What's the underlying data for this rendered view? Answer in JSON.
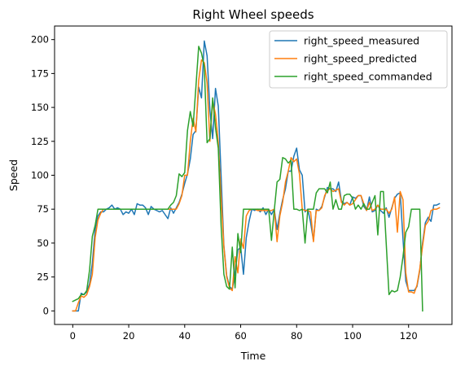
{
  "chart_data": {
    "type": "line",
    "title": "Right Wheel speeds",
    "xlabel": "Time",
    "ylabel": "Speed",
    "xlim": [
      -6.5,
      135.5
    ],
    "ylim": [
      -10,
      210
    ],
    "xticks": [
      0,
      20,
      40,
      60,
      80,
      100,
      120
    ],
    "yticks": [
      0,
      25,
      50,
      75,
      100,
      125,
      150,
      175,
      200
    ],
    "grid": false,
    "legend_position": "top-right",
    "colors": {
      "right_speed_measured": "#1f77b4",
      "right_speed_predicted": "#ff7f0e",
      "right_speed_commanded": "#2ca02c"
    },
    "series": [
      {
        "name": "right_speed_measured",
        "color": "#1f77b4",
        "values": [
          0,
          0,
          0,
          13,
          12,
          14,
          20,
          35,
          60,
          70,
          73,
          73,
          75,
          76,
          78,
          75,
          76,
          75,
          71,
          73,
          72,
          75,
          71,
          79,
          78,
          78,
          76,
          71,
          77,
          75,
          74,
          73,
          74,
          71,
          68,
          76,
          72,
          76,
          80,
          86,
          94,
          101,
          112,
          130,
          133,
          165,
          157,
          199,
          188,
          148,
          127,
          164,
          151,
          100,
          48,
          26,
          18,
          16,
          28,
          45,
          47,
          27,
          54,
          66,
          75,
          74,
          75,
          73,
          76,
          71,
          75,
          71,
          75,
          60,
          72,
          82,
          90,
          103,
          103,
          114,
          120,
          104,
          100,
          73,
          75,
          65,
          52,
          75,
          74,
          77,
          84,
          91,
          90,
          90,
          88,
          95,
          81,
          79,
          80,
          78,
          84,
          83,
          85,
          85,
          77,
          74,
          84,
          73,
          74,
          78,
          74,
          72,
          76,
          69,
          76,
          83,
          86,
          87,
          53,
          22,
          15,
          15,
          15,
          18,
          30,
          50,
          65,
          69,
          66,
          78,
          78,
          79
        ]
      },
      {
        "name": "right_speed_predicted",
        "color": "#ff7f0e",
        "values": [
          0,
          0,
          6,
          11,
          10,
          12,
          18,
          27,
          54,
          67,
          72,
          75,
          75,
          75,
          75,
          75,
          75,
          75,
          75,
          75,
          75,
          75,
          75,
          75,
          75,
          75,
          75,
          75,
          75,
          75,
          75,
          75,
          75,
          75,
          75,
          75,
          75,
          75,
          79,
          85,
          100,
          100,
          125,
          142,
          132,
          170,
          185,
          183,
          168,
          125,
          155,
          145,
          124,
          84,
          47,
          25,
          17,
          15,
          40,
          28,
          53,
          46,
          70,
          74,
          75,
          75,
          74,
          74,
          74,
          74,
          74,
          74,
          75,
          51,
          70,
          80,
          95,
          103,
          113,
          110,
          112,
          101,
          75,
          74,
          74,
          73,
          51,
          74,
          74,
          76,
          85,
          89,
          90,
          88,
          89,
          90,
          80,
          78,
          80,
          78,
          79,
          82,
          85,
          85,
          79,
          74,
          80,
          74,
          75,
          78,
          75,
          75,
          75,
          72,
          75,
          84,
          58,
          88,
          82,
          28,
          14,
          14,
          13,
          19,
          31,
          48,
          63,
          66,
          74,
          75,
          75,
          76
        ]
      },
      {
        "name": "right_speed_commanded",
        "color": "#2ca02c",
        "values": [
          7,
          8,
          9,
          12,
          12,
          15,
          30,
          55,
          63,
          75,
          75,
          75,
          75,
          75,
          75,
          75,
          75,
          75,
          75,
          75,
          75,
          75,
          75,
          75,
          75,
          75,
          75,
          75,
          75,
          75,
          75,
          75,
          75,
          75,
          75,
          78,
          80,
          85,
          101,
          99,
          102,
          133,
          147,
          136,
          165,
          195,
          190,
          180,
          124,
          127,
          157,
          135,
          120,
          63,
          27,
          18,
          16,
          47,
          17,
          57,
          43,
          75,
          75,
          75,
          75,
          75,
          75,
          75,
          75,
          75,
          75,
          52,
          74,
          95,
          97,
          113,
          112,
          109,
          111,
          75,
          75,
          74,
          75,
          50,
          75,
          75,
          75,
          87,
          90,
          90,
          90,
          87,
          95,
          75,
          82,
          75,
          75,
          85,
          86,
          86,
          83,
          75,
          78,
          75,
          79,
          75,
          75,
          80,
          85,
          56,
          88,
          88,
          50,
          12,
          15,
          14,
          15,
          25,
          40,
          58,
          62,
          75,
          75,
          75,
          75,
          0
        ]
      }
    ]
  }
}
